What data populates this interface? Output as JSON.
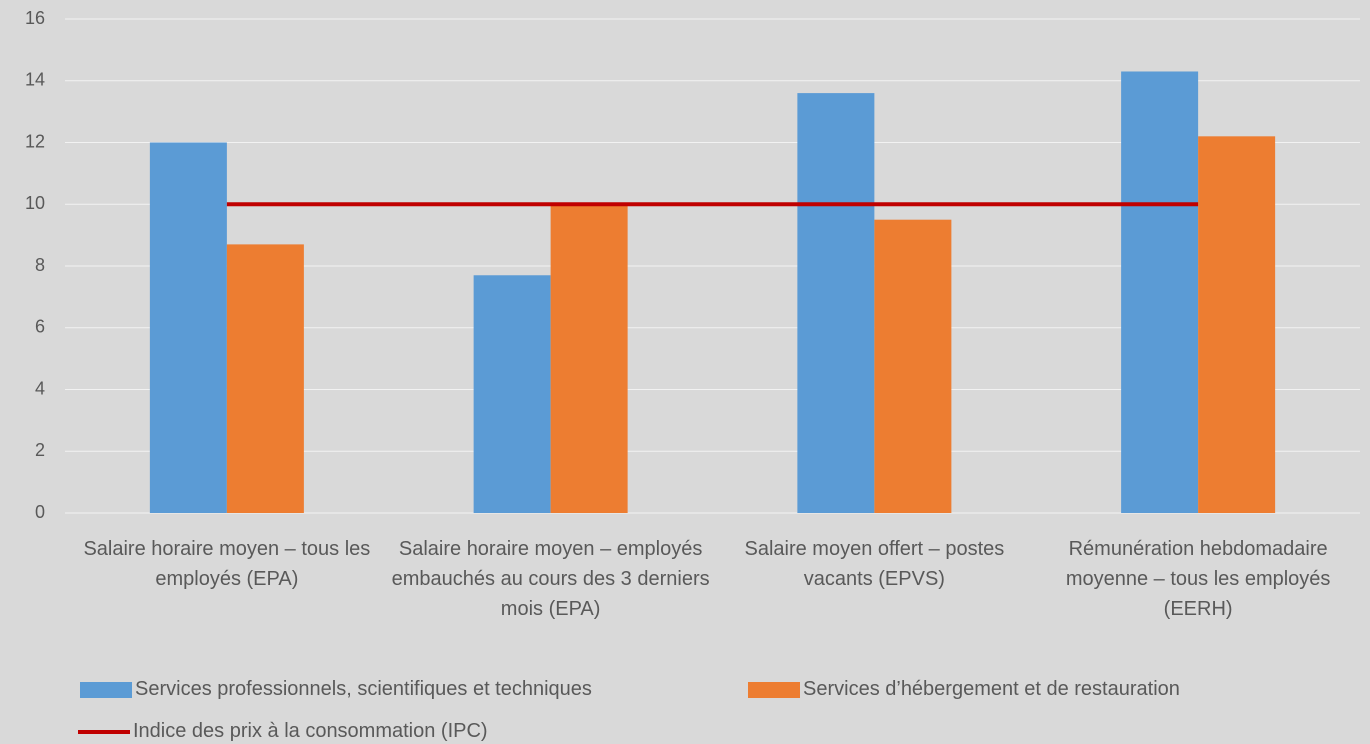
{
  "chart_data": {
    "type": "bar",
    "categories": [
      "Salaire horaire moyen – tous les employés (EPA)",
      "Salaire horaire moyen – employés embauchés au cours des 3 derniers mois (EPA)",
      "Salaire moyen offert – postes vacants (EPVS)",
      "Rémunération hebdomadaire moyenne – tous les employés (EERH)"
    ],
    "series": [
      {
        "name": "Services professionnels, scientifiques et techniques",
        "color": "#5b9bd5",
        "type": "bar",
        "values": [
          12,
          7.7,
          13.6,
          14.3
        ]
      },
      {
        "name": "Services d’hébergement et de restauration",
        "color": "#ed7d31",
        "type": "bar",
        "values": [
          8.7,
          10,
          9.5,
          12.2
        ]
      },
      {
        "name": "Indice des prix à la consommation (IPC)",
        "color": "#c00000",
        "type": "line",
        "values": [
          10,
          10,
          10,
          10
        ]
      }
    ],
    "ylim": [
      0,
      16
    ],
    "yticks": [
      0,
      2,
      4,
      6,
      8,
      10,
      12,
      14,
      16
    ],
    "grid": true,
    "legend": "bottom"
  }
}
